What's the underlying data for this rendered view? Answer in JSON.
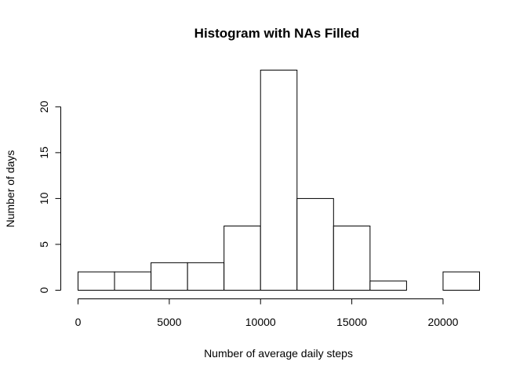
{
  "chart_data": {
    "type": "bar",
    "title": "Histogram with NAs Filled",
    "xlabel": "Number of average daily steps",
    "ylabel": "Number of days",
    "bins": [
      {
        "from": 0,
        "to": 2000,
        "count": 2
      },
      {
        "from": 2000,
        "to": 4000,
        "count": 2
      },
      {
        "from": 4000,
        "to": 6000,
        "count": 3
      },
      {
        "from": 6000,
        "to": 8000,
        "count": 3
      },
      {
        "from": 8000,
        "to": 10000,
        "count": 7
      },
      {
        "from": 10000,
        "to": 12000,
        "count": 24
      },
      {
        "from": 12000,
        "to": 14000,
        "count": 10
      },
      {
        "from": 14000,
        "to": 16000,
        "count": 7
      },
      {
        "from": 16000,
        "to": 18000,
        "count": 1
      },
      {
        "from": 18000,
        "to": 20000,
        "count": 0
      },
      {
        "from": 20000,
        "to": 22000,
        "count": 2
      }
    ],
    "xlim": [
      0,
      22000
    ],
    "ylim": [
      0,
      24
    ],
    "x_ticks": [
      "0",
      "5000",
      "10000",
      "15000",
      "20000"
    ],
    "y_ticks": [
      "0",
      "5",
      "10",
      "15",
      "20"
    ],
    "grid": false,
    "legend": "none"
  }
}
